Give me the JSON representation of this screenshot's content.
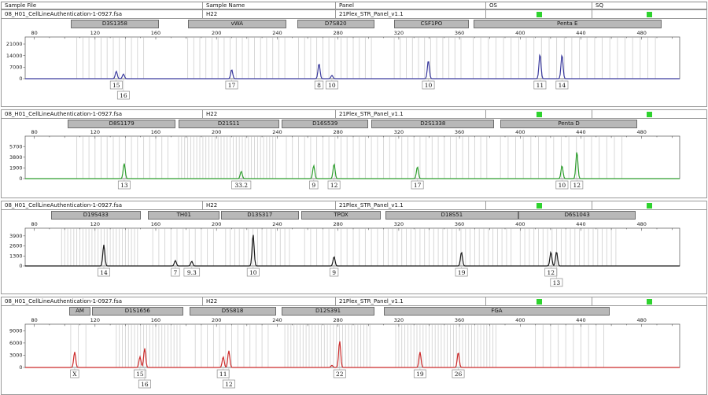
{
  "header": {
    "sample_file": "Sample File",
    "sample_name": "Sample Name",
    "panel": "Panel",
    "os": "OS",
    "sq": "SQ"
  },
  "sample": {
    "file": "08_H01_CellLineAuthentication-1-0927.fsa",
    "name": "H22",
    "panel": "21Plex_STR_Panel_v1.1"
  },
  "status": {
    "os_ok": true,
    "sq_ok": true,
    "ok_color": "#2ed32e"
  },
  "colors": {
    "bin": "#d4d4d4",
    "marker_bg": "#b8b8b8",
    "marker_border": "#6e6e6e",
    "blue": "#3b3b9e",
    "green": "#2e9e2e",
    "black": "#1a1a1a",
    "red": "#cc2b2b"
  },
  "axis": {
    "x_ticks": [
      80,
      120,
      160,
      200,
      240,
      280,
      320,
      360,
      400,
      440,
      480
    ],
    "x_unit": "bp",
    "bp_min": 74,
    "bp_max": 505
  },
  "chart_data": [
    {
      "type": "line",
      "dye": "blue",
      "color": "#3b3b9e",
      "y_ticks": [
        7000,
        14000,
        21000
      ],
      "y_max": 25300,
      "markers": [
        {
          "label": "D3S1358",
          "from": 104,
          "to": 161
        },
        {
          "label": "vWA",
          "from": 181,
          "to": 245
        },
        {
          "label": "D7S820",
          "from": 253,
          "to": 303
        },
        {
          "label": "CSF1PO",
          "from": 317,
          "to": 365
        },
        {
          "label": "Penta E",
          "from": 369,
          "to": 492
        }
      ],
      "bins": [
        [
          108,
          152,
          4
        ],
        [
          181,
          245,
          4
        ],
        [
          254,
          302,
          4
        ],
        [
          317,
          361,
          4
        ],
        [
          369,
          489,
          5
        ]
      ],
      "peaks": [
        {
          "bp": 134.0,
          "rfu": 4500,
          "label": "15",
          "row": 1
        },
        {
          "bp": 138.7,
          "rfu": 2800,
          "label": "16",
          "row": 2
        },
        {
          "bp": 210.0,
          "rfu": 5500,
          "label": "17",
          "row": 1
        },
        {
          "bp": 267.5,
          "rfu": 9200,
          "label": "8",
          "row": 1
        },
        {
          "bp": 276.0,
          "rfu": 2000,
          "label": "10",
          "row": 1
        },
        {
          "bp": 339.5,
          "rfu": 11000,
          "label": "10",
          "row": 1
        },
        {
          "bp": 413.0,
          "rfu": 14900,
          "label": "11",
          "row": 1
        },
        {
          "bp": 427.5,
          "rfu": 14600,
          "label": "14",
          "row": 1
        }
      ]
    },
    {
      "type": "line",
      "dye": "green",
      "color": "#2e9e2e",
      "y_ticks": [
        1900,
        3800,
        5700
      ],
      "y_max": 7550,
      "markers": [
        {
          "label": "D8S1179",
          "from": 102,
          "to": 172
        },
        {
          "label": "D21S11",
          "from": 175,
          "to": 240
        },
        {
          "label": "D16S539",
          "from": 243,
          "to": 299
        },
        {
          "label": "D2S1338",
          "from": 302,
          "to": 382
        },
        {
          "label": "Penta D",
          "from": 387,
          "to": 476
        }
      ],
      "bins": [
        [
          108,
          168,
          4
        ],
        [
          175,
          239,
          2
        ],
        [
          246,
          298,
          4
        ],
        [
          302,
          378,
          4
        ],
        [
          387,
          467,
          5
        ]
      ],
      "peaks": [
        {
          "bp": 139.2,
          "rfu": 2700,
          "label": "13",
          "row": 1
        },
        {
          "bp": 216.3,
          "rfu": 1300,
          "label": "33.2",
          "row": 1
        },
        {
          "bp": 264.0,
          "rfu": 2300,
          "label": "9",
          "row": 1
        },
        {
          "bp": 277.4,
          "rfu": 2600,
          "label": "12",
          "row": 1
        },
        {
          "bp": 332.3,
          "rfu": 2100,
          "label": "17",
          "row": 1
        },
        {
          "bp": 427.5,
          "rfu": 2300,
          "label": "10",
          "row": 1
        },
        {
          "bp": 437.3,
          "rfu": 4800,
          "label": "12",
          "row": 1
        }
      ]
    },
    {
      "type": "line",
      "dye": "black",
      "color": "#1a1a1a",
      "y_ticks": [
        1300,
        2600,
        3900
      ],
      "y_max": 4900,
      "markers": [
        {
          "label": "D19S433",
          "from": 91,
          "to": 149
        },
        {
          "label": "TH01",
          "from": 155,
          "to": 201
        },
        {
          "label": "D13S317",
          "from": 203,
          "to": 253
        },
        {
          "label": "TPOX",
          "from": 256,
          "to": 307
        },
        {
          "label": "D18S51",
          "from": 311,
          "to": 398
        },
        {
          "label": "D6S1043",
          "from": 399,
          "to": 475
        }
      ],
      "bins": [
        [
          98,
          148,
          2
        ],
        [
          158,
          198,
          4
        ],
        [
          206,
          250,
          3
        ],
        [
          258,
          306,
          4
        ],
        [
          310,
          396,
          3
        ],
        [
          400,
          464,
          3
        ]
      ],
      "peaks": [
        {
          "bp": 125.8,
          "rfu": 2750,
          "label": "14",
          "row": 1
        },
        {
          "bp": 172.9,
          "rfu": 700,
          "label": "7",
          "row": 1
        },
        {
          "bp": 183.7,
          "rfu": 600,
          "label": "9.3",
          "row": 1
        },
        {
          "bp": 224.1,
          "rfu": 4100,
          "label": "10",
          "row": 1
        },
        {
          "bp": 277.4,
          "rfu": 1200,
          "label": "9",
          "row": 1
        },
        {
          "bp": 361.3,
          "rfu": 1800,
          "label": "19",
          "row": 1
        },
        {
          "bp": 420.2,
          "rfu": 1800,
          "label": "12",
          "row": 1
        },
        {
          "bp": 423.9,
          "rfu": 1850,
          "label": "13",
          "row": 2
        }
      ]
    },
    {
      "type": "line",
      "dye": "red",
      "color": "#cc2b2b",
      "y_ticks": [
        3000,
        6000,
        9000
      ],
      "y_max": 10600,
      "markers": [
        {
          "label": "AM",
          "from": 103,
          "to": 116
        },
        {
          "label": "D1S1656",
          "from": 118,
          "to": 177
        },
        {
          "label": "D5S818",
          "from": 182,
          "to": 238
        },
        {
          "label": "D12S391",
          "from": 243,
          "to": 303
        },
        {
          "label": "FGA",
          "from": 310,
          "to": 458
        }
      ],
      "bins": [
        [
          104,
          114,
          5
        ],
        [
          134,
          176,
          2
        ],
        [
          186,
          236,
          4
        ],
        [
          245,
          301,
          2
        ],
        [
          318,
          384,
          2
        ],
        [
          410,
          455,
          5
        ]
      ],
      "peaks": [
        {
          "bp": 106.6,
          "rfu": 3800,
          "label": "X",
          "row": 1
        },
        {
          "bp": 149.6,
          "rfu": 2600,
          "label": "15",
          "row": 1
        },
        {
          "bp": 152.7,
          "rfu": 4700,
          "label": "16",
          "row": 2
        },
        {
          "bp": 204.4,
          "rfu": 2600,
          "label": "11",
          "row": 1
        },
        {
          "bp": 208.1,
          "rfu": 4100,
          "label": "12",
          "row": 2
        },
        {
          "bp": 276.0,
          "rfu": 500,
          "label": null,
          "row": 1
        },
        {
          "bp": 281.1,
          "rfu": 6500,
          "label": "22",
          "row": 1
        },
        {
          "bp": 334.0,
          "rfu": 3800,
          "label": "19",
          "row": 1
        },
        {
          "bp": 359.2,
          "rfu": 3700,
          "label": "26",
          "row": 1
        }
      ]
    }
  ]
}
